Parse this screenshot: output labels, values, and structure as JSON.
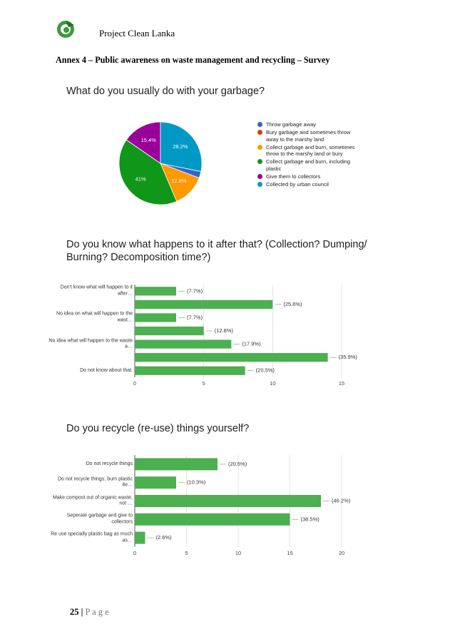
{
  "header": {
    "title": "Project Clean Lanka"
  },
  "annex_title": "Annex 4 – Public awareness on waste management and recycling – Survey",
  "chart_data": [
    {
      "type": "pie",
      "title": "What do you usually do with your garbage?",
      "categories": [
        "Throw garbage away",
        "Bury garbage and sometimes throw away to the marshy land",
        "Collect garbage and burn, sometimes throw to the marshy land or bury",
        "Collect garbage and burn, including plastic",
        "Give them to collectors",
        "Collected by urban council"
      ],
      "values": [
        2.6,
        0,
        12.8,
        41,
        15.4,
        28.2
      ],
      "value_labels": [
        null,
        null,
        "12.8%",
        "41%",
        "15.4%",
        "28.2%"
      ],
      "colors": [
        "#3366cc",
        "#dc3912",
        "#ff9900",
        "#109618",
        "#990099",
        "#0099c6"
      ]
    },
    {
      "type": "bar",
      "orientation": "horizontal",
      "title": "Do you know what happens to it after that? (Collection? Dumping/ Burning? Decomposition time?)",
      "categories": [
        "Don't know what will happen to it after…",
        null,
        "No idea on what will happen to the wast…",
        null,
        "No idea what will happen to the waste a…",
        null,
        "Do not know about that."
      ],
      "values": [
        3,
        10,
        3,
        5,
        7,
        14,
        8
      ],
      "value_labels": [
        "(7.7%)",
        "(25.6%)",
        "(7.7%)",
        "(12.8%)",
        "(17.9%)",
        "(35.9%)",
        "(20.5%)"
      ],
      "color": "#4caf50",
      "xlim": [
        0,
        15
      ],
      "xticks": [
        0,
        5,
        10,
        15
      ],
      "grid": true
    },
    {
      "type": "bar",
      "orientation": "horizontal",
      "title": "Do you recycle (re-use) things yourself?",
      "categories": [
        "Do not recycle things",
        "Do not recycle things, burn plastic ite…",
        "Make compost out of organic waste, not …",
        "Seperate garbage and give to collectors",
        "Re use specially plastic bag as much as…"
      ],
      "values": [
        8,
        4,
        18,
        15,
        1
      ],
      "value_labels": [
        "(20.5%)",
        "(10.3%)",
        "(46.2%)",
        "(38.5%)",
        "(2.6%)"
      ],
      "color": "#4caf50",
      "xlim": [
        0,
        20
      ],
      "xticks": [
        0,
        5,
        10,
        15,
        20
      ],
      "grid": true
    }
  ],
  "footer": {
    "page_number": "25",
    "separator": "|",
    "label": "P a g e"
  }
}
